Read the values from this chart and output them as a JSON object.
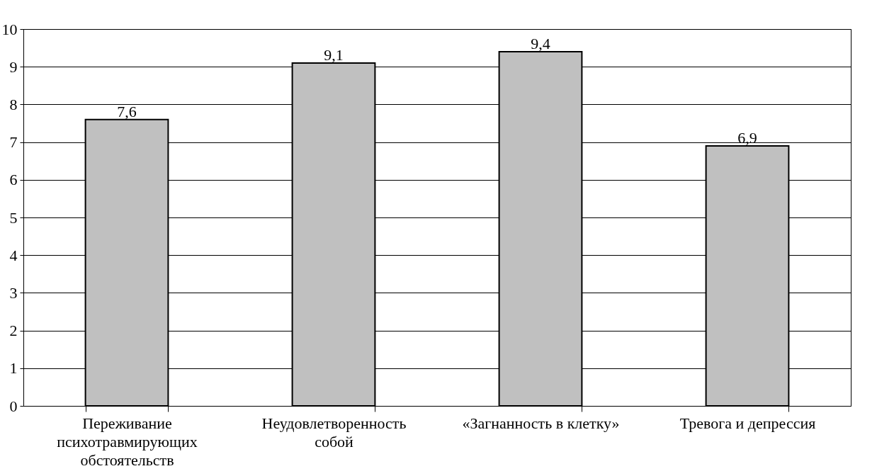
{
  "chart_data": {
    "type": "bar",
    "categories": [
      "Переживание психотравмирующих обстоятельств",
      "Неудовлетворенность собой",
      "«Загнанность в клетку»",
      "Тревога и депрессия"
    ],
    "values": [
      7.6,
      9.1,
      9.4,
      6.9
    ],
    "value_labels": [
      "7,6",
      "9,1",
      "9,4",
      "6,9"
    ],
    "color": "#c0c0c0",
    "ylim": [
      0,
      10
    ],
    "yticks": [
      0,
      1,
      2,
      3,
      4,
      5,
      6,
      7,
      8,
      9,
      10
    ],
    "grid": "y"
  }
}
